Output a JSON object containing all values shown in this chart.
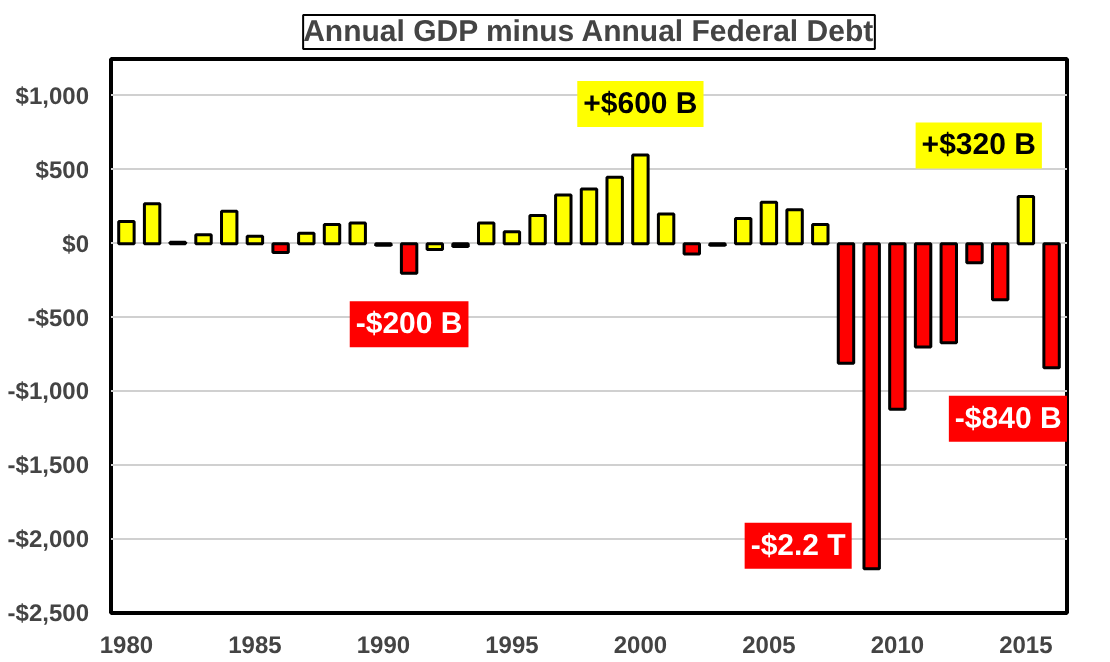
{
  "chart_data": {
    "type": "bar",
    "title": "Annual GDP minus Annual Federal Debt",
    "x": [
      1980,
      1981,
      1982,
      1983,
      1984,
      1985,
      1986,
      1987,
      1988,
      1989,
      1990,
      1991,
      1992,
      1993,
      1994,
      1995,
      1996,
      1997,
      1998,
      1999,
      2000,
      2001,
      2002,
      2003,
      2004,
      2005,
      2006,
      2007,
      2008,
      2009,
      2010,
      2011,
      2012,
      2013,
      2014,
      2015,
      2016
    ],
    "values": [
      150,
      270,
      10,
      60,
      220,
      50,
      -60,
      70,
      130,
      140,
      -10,
      -200,
      -40,
      -20,
      140,
      80,
      190,
      330,
      370,
      450,
      600,
      200,
      -70,
      -10,
      170,
      280,
      230,
      130,
      -810,
      -2200,
      -1120,
      -700,
      -670,
      -130,
      -380,
      320,
      -840
    ],
    "colors": [
      "#ffff00",
      "#ffff00",
      "#ffff00",
      "#ffff00",
      "#ffff00",
      "#ffff00",
      "#ff0000",
      "#ffff00",
      "#ffff00",
      "#ffff00",
      "#ff0000",
      "#ff0000",
      "#ffff00",
      "#ff0000",
      "#ffff00",
      "#ffff00",
      "#ffff00",
      "#ffff00",
      "#ffff00",
      "#ffff00",
      "#ffff00",
      "#ffff00",
      "#ff0000",
      "#ff0000",
      "#ffff00",
      "#ffff00",
      "#ffff00",
      "#ffff00",
      "#ff0000",
      "#ff0000",
      "#ff0000",
      "#ff0000",
      "#ff0000",
      "#ff0000",
      "#ff0000",
      "#ffff00",
      "#ff0000"
    ],
    "xlim": [
      1979.4,
      2016.6
    ],
    "xticks": [
      1980,
      1985,
      1990,
      1995,
      2000,
      2005,
      2010,
      2015
    ],
    "ylim": [
      -2500,
      1250
    ],
    "yticks": [
      {
        "value": -2500,
        "label": "-$2,500"
      },
      {
        "value": -2000,
        "label": "-$2,000"
      },
      {
        "value": -1500,
        "label": "-$1,500"
      },
      {
        "value": -1000,
        "label": "-$1,000"
      },
      {
        "value": -500,
        "label": "-$500"
      },
      {
        "value": 0,
        "label": "$0"
      },
      {
        "value": 500,
        "label": "$500"
      },
      {
        "value": 1000,
        "label": "$1,000"
      }
    ],
    "grid": "y",
    "annotations": [
      {
        "text": "-$200 B",
        "x": 1991,
        "y": -200
      },
      {
        "text": "+$600 B",
        "x": 2000,
        "y": 600
      },
      {
        "text": "-$2.2 T",
        "x": 2009,
        "y": -2200
      },
      {
        "text": "+$320 B",
        "x": 2015,
        "y": 320
      },
      {
        "text": "-$840 B",
        "x": 2016,
        "y": -840
      }
    ]
  }
}
